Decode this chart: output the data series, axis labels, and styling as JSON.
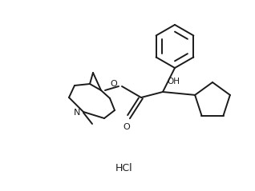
{
  "background_color": "#ffffff",
  "line_color": "#1a1a1a",
  "line_width": 1.4,
  "text_color": "#1a1a1a",
  "hcl_label": "HCl",
  "oh_label": "OH",
  "o_label": "O",
  "n_label": "N",
  "figsize": [
    3.18,
    2.39
  ],
  "dpi": 100
}
